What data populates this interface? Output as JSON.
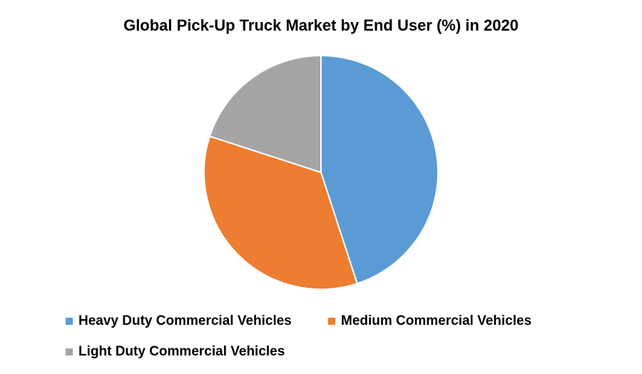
{
  "chart_data": {
    "type": "pie",
    "title": "Global Pick-Up Truck Market by End User (%) in 2020",
    "categories": [
      "Heavy Duty Commercial Vehicles",
      "Medium Commercial Vehicles",
      "Light Duty Commercial Vehicles"
    ],
    "values": [
      45,
      35,
      20
    ],
    "colors": [
      "#5b9bd5",
      "#ed7d31",
      "#a5a5a5"
    ],
    "legend": "bottom"
  }
}
